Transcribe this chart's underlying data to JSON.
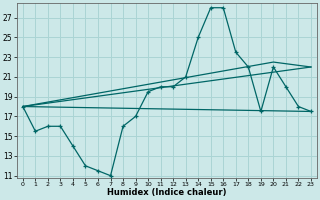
{
  "xlabel": "Humidex (Indice chaleur)",
  "bg_color": "#cce8e8",
  "line_color": "#006666",
  "grid_color": "#aad4d4",
  "ylim": [
    11,
    28
  ],
  "xlim": [
    -0.5,
    23.5
  ],
  "yticks": [
    11,
    13,
    15,
    17,
    19,
    21,
    23,
    25,
    27
  ],
  "xticks": [
    0,
    1,
    2,
    3,
    4,
    5,
    6,
    7,
    8,
    9,
    10,
    11,
    12,
    13,
    14,
    15,
    16,
    17,
    18,
    19,
    20,
    21,
    22,
    23
  ],
  "line1_x": [
    0,
    1,
    2,
    3,
    4,
    5,
    6,
    7,
    8,
    9,
    10,
    11,
    12,
    13,
    14,
    15,
    16,
    17,
    18,
    19,
    20,
    21,
    22,
    23
  ],
  "line1_y": [
    18,
    15.5,
    16,
    16,
    14,
    12,
    11.5,
    11,
    16,
    17,
    19.5,
    20,
    20,
    21,
    25,
    28,
    28,
    23.5,
    22,
    17.5,
    22,
    20,
    18,
    17.5
  ],
  "line2_x": [
    0,
    23
  ],
  "line2_y": [
    18,
    17.5
  ],
  "line3_x": [
    0,
    20,
    23
  ],
  "line3_y": [
    18,
    22.5,
    22
  ],
  "line4_x": [
    0,
    23
  ],
  "line4_y": [
    18,
    22
  ]
}
